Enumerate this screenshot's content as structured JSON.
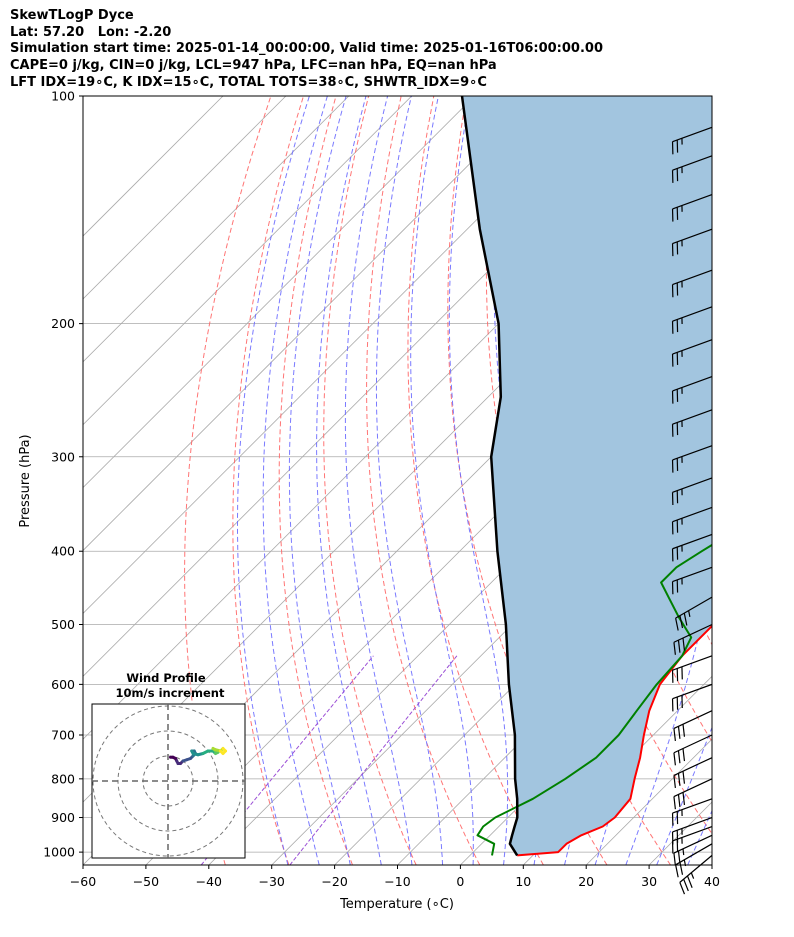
{
  "header": {
    "line1": "SkewTLogP Dyce",
    "line2": "Lat: 57.20   Lon: -2.20",
    "line3": "Simulation start time: 2025-01-14_00:00:00, Valid time: 2025-01-16T06:00:00.00",
    "line4": "CAPE=0 j/kg, CIN=0 j/kg, LCL=947 hPa, LFC=nan hPa, EQ=nan hPa",
    "line5": "LFT IDX=19∘C, K IDX=15∘C, TOTAL TOTS=38∘C, SHWTR_IDX=9∘C"
  },
  "chart_data": {
    "type": "line",
    "subtype": "skew-t log-p",
    "xlabel": "Temperature (∘C)",
    "ylabel": "Pressure (hPa)",
    "xlim": [
      -60,
      40
    ],
    "ylim": [
      1040,
      100
    ],
    "y_scale": "log",
    "x_ticks": [
      "−60",
      "−50",
      "−40",
      "−30",
      "−20",
      "−10",
      "0",
      "10",
      "20",
      "30",
      "40"
    ],
    "y_ticks": [
      "100",
      "200",
      "300",
      "400",
      "500",
      "600",
      "700",
      "800",
      "900",
      "1000"
    ],
    "y_tick_values": [
      100,
      200,
      300,
      400,
      500,
      600,
      700,
      800,
      900,
      1000
    ],
    "grid": true,
    "colors": {
      "temperature": "#ff0000",
      "dewpoint": "#008000",
      "parcel": "#000000",
      "fill": "#a2c5df",
      "isotherm": "#aaaaaa",
      "dry_adiabat": "#ff6666",
      "moist_adiabat": "#6b6bff",
      "mixing_ratio": "#9b4fd6"
    },
    "series": [
      {
        "name": "temperature",
        "pressure": [
          1010,
          1000,
          975,
          950,
          925,
          900,
          850,
          800,
          750,
          700,
          650,
          600,
          550,
          500,
          470,
          420,
          380,
          340,
          300,
          260,
          235,
          210,
          180,
          165,
          150,
          130,
          110,
          100
        ],
        "values": [
          7.5,
          13.5,
          13.5,
          14.5,
          16.5,
          17,
          16.5,
          14,
          11.5,
          8.5,
          5.5,
          3,
          2,
          2,
          1,
          -1.5,
          -4,
          -6.5,
          -10,
          -14,
          -15.5,
          -14,
          -11.5,
          -10,
          -8,
          -5,
          -2,
          0
        ]
      },
      {
        "name": "dewpoint",
        "pressure": [
          1010,
          975,
          950,
          925,
          900,
          850,
          800,
          750,
          700,
          650,
          600,
          550,
          520,
          490,
          460,
          440,
          420,
          400,
          370,
          340,
          310,
          280,
          250,
          230,
          200,
          185,
          170,
          150,
          130,
          100
        ],
        "values": [
          3.5,
          2,
          -2,
          -2.5,
          -2,
          1,
          3,
          4.5,
          4.5,
          3.5,
          2.5,
          2,
          0.5,
          -4.5,
          -9.5,
          -13,
          -13,
          -11.5,
          -9,
          -8,
          -10,
          -14,
          -17,
          -19.5,
          -20,
          -17,
          -14.5,
          -15,
          -16,
          -10
        ]
      },
      {
        "name": "parcel",
        "pressure": [
          1010,
          975,
          950,
          925,
          900,
          850,
          800,
          700,
          600,
          500,
          400,
          300,
          250,
          200,
          150,
          100
        ],
        "values": [
          7.5,
          4.5,
          3.5,
          2.5,
          1.5,
          -1.5,
          -5,
          -12,
          -21,
          -31,
          -44,
          -60,
          -68,
          -80,
          -98,
          -122
        ]
      }
    ],
    "wind_barbs": {
      "pressure": [
        1010,
        975,
        950,
        925,
        900,
        850,
        800,
        750,
        700,
        650,
        600,
        550,
        500,
        460,
        420,
        380,
        350,
        320,
        290,
        260,
        235,
        210,
        190,
        170,
        150,
        135,
        120,
        110
      ],
      "speed_kt": [
        35,
        25,
        25,
        25,
        25,
        25,
        30,
        30,
        30,
        30,
        30,
        30,
        30,
        35,
        25,
        25,
        25,
        25,
        25,
        25,
        25,
        25,
        25,
        25,
        25,
        25,
        25,
        25
      ],
      "direction_deg": [
        230,
        240,
        245,
        250,
        250,
        250,
        245,
        245,
        245,
        245,
        250,
        250,
        245,
        240,
        250,
        250,
        250,
        250,
        250,
        250,
        250,
        250,
        250,
        250,
        250,
        250,
        250,
        250
      ]
    },
    "inset": {
      "title": "Wind Profile",
      "subtitle": "10m/s increment",
      "u": [
        1,
        2,
        3,
        3.5,
        4,
        5,
        6,
        7.5,
        9,
        10,
        11,
        10.5,
        9.5,
        10,
        12,
        14,
        16,
        18,
        19,
        20,
        19,
        18,
        19,
        21,
        22,
        23,
        22,
        21
      ],
      "v": [
        9.5,
        9.5,
        9,
        8,
        7,
        7,
        8,
        8.5,
        9,
        10,
        11,
        12,
        12,
        11,
        10.5,
        11,
        12,
        12,
        11,
        11.5,
        12,
        13,
        12.5,
        12,
        13,
        12,
        11,
        12
      ]
    }
  }
}
